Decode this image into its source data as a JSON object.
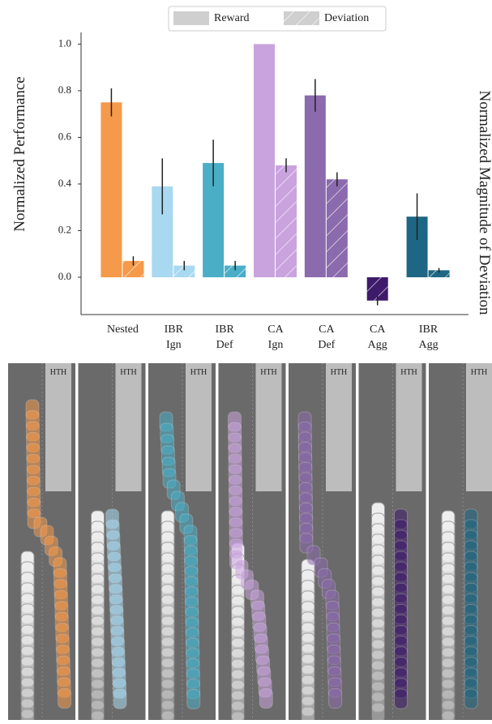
{
  "chart_data": {
    "type": "bar",
    "ylabel": "Normalized Performance",
    "y2label": "Normalized Magnitude of Deviation",
    "categories": [
      "Nested",
      "IBR Ign",
      "IBR Def",
      "CA Ign",
      "CA Def",
      "CA Agg",
      "IBR Agg"
    ],
    "colors": [
      "#f5994a",
      "#a9d9f1",
      "#4aaec7",
      "#c9a3de",
      "#8b6aae",
      "#3e1a6b",
      "#1d6784"
    ],
    "series": [
      {
        "name": "Reward",
        "values": [
          0.75,
          0.39,
          0.49,
          1.0,
          0.78,
          -0.1,
          0.26
        ],
        "errors": [
          0.06,
          0.12,
          0.1,
          0,
          0.07,
          0.02,
          0.1
        ]
      },
      {
        "name": "Deviation",
        "values": [
          0.07,
          0.05,
          0.05,
          0.48,
          0.42,
          null,
          0.03
        ],
        "errors": [
          0.02,
          0.02,
          0.02,
          0.03,
          0.03,
          null,
          0.01
        ]
      }
    ],
    "ylim": [
      -0.16,
      1.05
    ],
    "yticks": [
      {
        "value": 0,
        "label": "0.0"
      },
      {
        "value": 0.2,
        "label": "0.2"
      },
      {
        "value": 0.4,
        "label": "0.4"
      },
      {
        "value": 0.6,
        "label": "0.6"
      },
      {
        "value": 0.8,
        "label": "0.8"
      },
      {
        "value": 1.0,
        "label": "1.0"
      }
    ]
  },
  "panels": {
    "label": "HTH"
  }
}
